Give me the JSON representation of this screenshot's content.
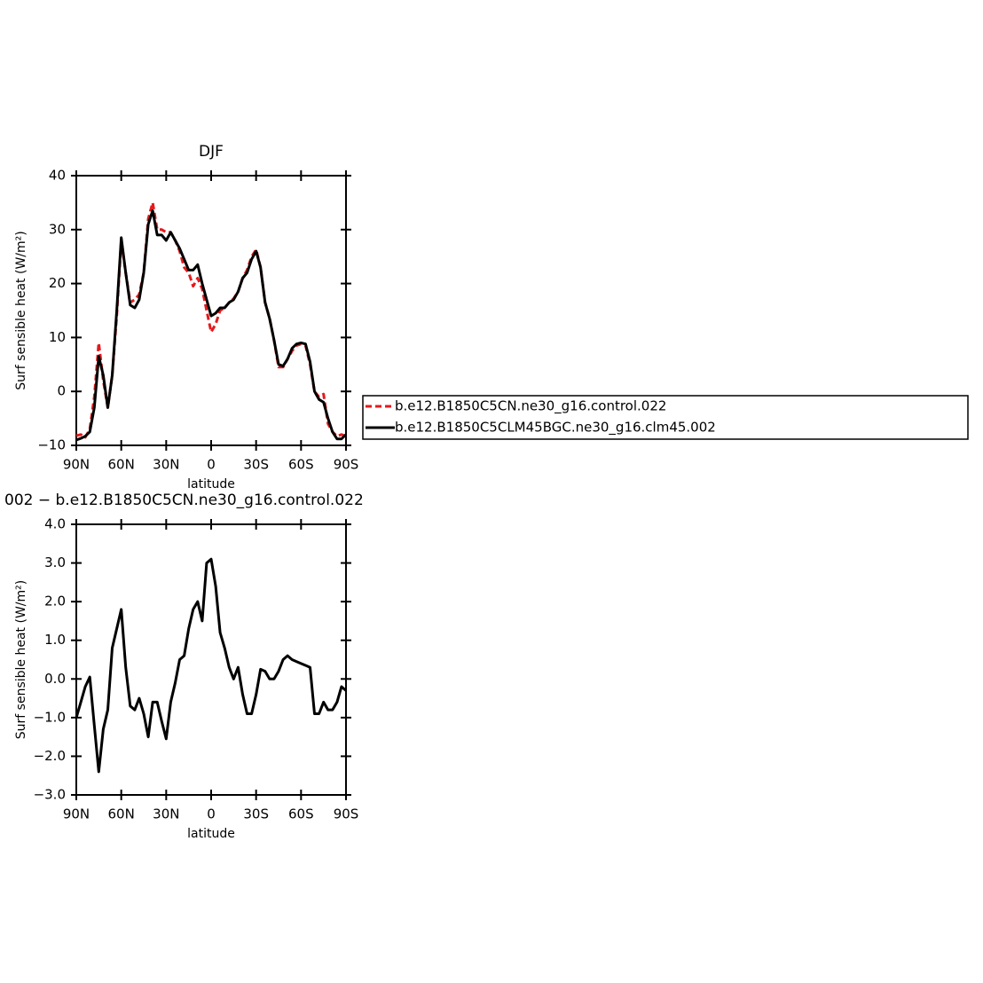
{
  "chart_data": [
    {
      "type": "line",
      "title": "DJF",
      "x_label": "latitude",
      "y_label": "Surf sensible heat (W/m²)",
      "x": [
        90,
        87,
        84,
        81,
        78,
        75,
        72,
        69,
        66,
        63,
        60,
        57,
        54,
        51,
        48,
        45,
        42,
        39,
        36,
        33,
        30,
        27,
        24,
        21,
        18,
        15,
        12,
        9,
        6,
        3,
        0,
        -3,
        -6,
        -9,
        -12,
        -15,
        -18,
        -21,
        -24,
        -27,
        -30,
        -33,
        -36,
        -39,
        -42,
        -45,
        -48,
        -51,
        -54,
        -57,
        -60,
        -63,
        -66,
        -69,
        -72,
        -75,
        -78,
        -81,
        -84,
        -87,
        -90
      ],
      "xlim": [
        90,
        -90
      ],
      "xticks": [
        {
          "value": 90,
          "label": "90N"
        },
        {
          "value": 60,
          "label": "60N"
        },
        {
          "value": 30,
          "label": "30N"
        },
        0,
        {
          "value": -30,
          "label": "30S"
        },
        {
          "value": -60,
          "label": "60S"
        },
        {
          "value": -90,
          "label": "90S"
        }
      ],
      "ylim": [
        -10,
        40
      ],
      "yticks": [
        {
          "value": -10,
          "label": "−10"
        },
        0,
        10,
        20,
        30,
        40
      ],
      "legend": "right",
      "series": [
        {
          "name": "b.e12.B1850C5CN.ne30_g16.control.022",
          "color": "#e41a1c",
          "dash": true,
          "values": [
            -8.2,
            -8.0,
            -8.5,
            -7,
            -1,
            9,
            2,
            -3,
            3,
            14,
            28,
            22,
            16.5,
            17,
            18,
            22,
            32,
            35,
            30,
            30,
            29.5,
            29.5,
            28,
            26,
            23,
            22,
            19.5,
            21,
            19,
            15,
            11,
            12.5,
            15,
            15.5,
            16.5,
            17.2,
            18.5,
            21,
            22.5,
            25,
            26.3,
            23,
            16.5,
            13.5,
            9.5,
            4.5,
            4.5,
            6,
            7.5,
            8.5,
            8.8,
            8.5,
            5,
            0,
            -1,
            -0.5,
            -6,
            -7.5,
            -8.3,
            -8,
            -8.3
          ]
        },
        {
          "name": "b.e12.B1850C5CLM45BGC.ne30_g16.clm45.002",
          "color": "#000000",
          "dash": false,
          "values": [
            -9,
            -8.7,
            -8.3,
            -7.5,
            -3,
            6.5,
            3,
            -3,
            3,
            15,
            28.5,
            22,
            16,
            15.5,
            17,
            22,
            31,
            33.5,
            29,
            29,
            28,
            29.5,
            28,
            26.5,
            24.5,
            22.5,
            22.5,
            23.5,
            20,
            17,
            14,
            14.5,
            15.5,
            15.5,
            16.5,
            17,
            18.5,
            21,
            22,
            24.5,
            26,
            23,
            16.5,
            13.5,
            9.5,
            5,
            4.7,
            6,
            8,
            8.8,
            9,
            8.8,
            5.5,
            0,
            -1.5,
            -2,
            -5,
            -7.5,
            -8.8,
            -8.8,
            -8
          ]
        }
      ]
    },
    {
      "type": "line",
      "title": "002 − b.e12.B1850C5CN.ne30_g16.control.022",
      "x_label": "latitude",
      "y_label": "Surf sensible heat (W/m²)",
      "x": [
        90,
        87,
        84,
        81,
        78,
        75,
        72,
        69,
        66,
        63,
        60,
        57,
        54,
        51,
        48,
        45,
        42,
        39,
        36,
        33,
        30,
        27,
        24,
        21,
        18,
        15,
        12,
        9,
        6,
        3,
        0,
        -3,
        -6,
        -9,
        -12,
        -15,
        -18,
        -21,
        -24,
        -27,
        -30,
        -33,
        -36,
        -39,
        -42,
        -45,
        -48,
        -51,
        -54,
        -57,
        -60,
        -63,
        -66,
        -69,
        -72,
        -75,
        -78,
        -81,
        -84,
        -87,
        -90
      ],
      "xlim": [
        90,
        -90
      ],
      "xticks": [
        {
          "value": 90,
          "label": "90N"
        },
        {
          "value": 60,
          "label": "60N"
        },
        {
          "value": 30,
          "label": "30N"
        },
        0,
        {
          "value": -30,
          "label": "30S"
        },
        {
          "value": -60,
          "label": "60S"
        },
        {
          "value": -90,
          "label": "90S"
        }
      ],
      "ylim": [
        -3,
        4
      ],
      "yticks": [
        {
          "value": -3,
          "label": "−3.0"
        },
        {
          "value": -2,
          "label": "−2.0"
        },
        {
          "value": -1,
          "label": "−1.0"
        },
        {
          "value": 0,
          "label": "0.0"
        },
        {
          "value": 1,
          "label": "1.0"
        },
        {
          "value": 2,
          "label": "2.0"
        },
        {
          "value": 3,
          "label": "3.0"
        },
        {
          "value": 4,
          "label": "4.0"
        }
      ],
      "color": "#000000",
      "values": [
        -1.0,
        -0.6,
        -0.2,
        0.05,
        -1.2,
        -2.4,
        -1.3,
        -0.8,
        0.8,
        1.3,
        1.8,
        0.3,
        -0.7,
        -0.8,
        -0.5,
        -0.9,
        -1.5,
        -0.6,
        -0.6,
        -1.1,
        -1.55,
        -0.6,
        -0.1,
        0.5,
        0.6,
        1.3,
        1.8,
        2.0,
        1.5,
        3.0,
        3.1,
        2.4,
        1.2,
        0.8,
        0.3,
        0.0,
        0.3,
        -0.4,
        -0.9,
        -0.9,
        -0.4,
        0.25,
        0.2,
        0.0,
        0.0,
        0.2,
        0.5,
        0.6,
        0.5,
        0.45,
        0.4,
        0.35,
        0.3,
        -0.9,
        -0.9,
        -0.6,
        -0.8,
        -0.8,
        -0.6,
        -0.2,
        -0.3
      ]
    }
  ]
}
